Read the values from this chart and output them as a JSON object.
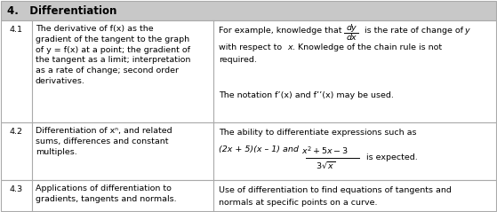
{
  "title": "4.   Differentiation",
  "header_bg": "#c8c8c8",
  "border_color": "#aaaaaa",
  "fig_bg": "#ffffff",
  "font_size": 6.8,
  "title_font_size": 8.5,
  "figw": 5.59,
  "figh": 2.39,
  "dpi": 100,
  "rows": [
    {
      "num": "4.1",
      "left": "The derivative of f(x) as the\ngradient of the tangent to the graph\nof y = f(x) at a point; the gradient of\nthe tangent as a limit; interpretation\nas a rate of change; second order\nderivatives."
    },
    {
      "num": "4.2",
      "left": "Differentiation of xⁿ, and related\nsums, differences and constant\nmultiples."
    },
    {
      "num": "4.3",
      "left": "Applications of differentiation to\ngradients, tangents and normals."
    }
  ]
}
